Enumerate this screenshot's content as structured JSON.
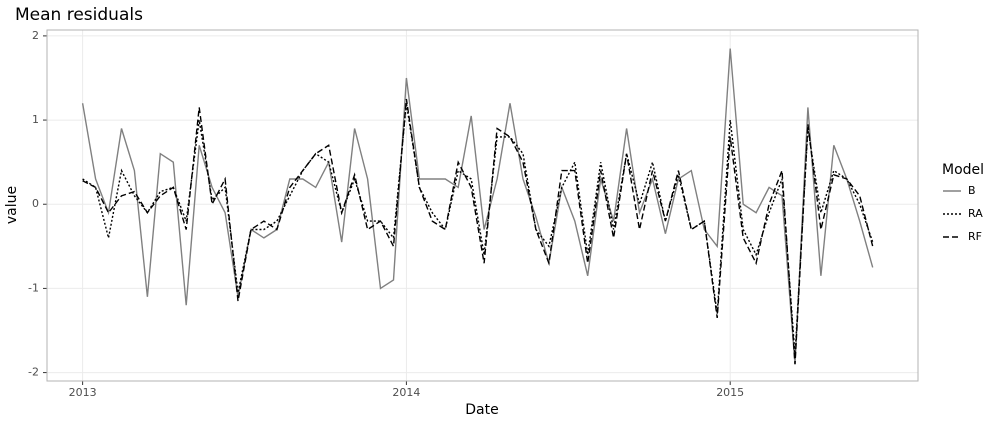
{
  "chart_data": {
    "type": "line",
    "title": "Mean residuals",
    "x_label": "Date",
    "y_label": "value",
    "x": [
      2013.0,
      2013.04,
      2013.08,
      2013.12,
      2013.16,
      2013.2,
      2013.24,
      2013.28,
      2013.32,
      2013.36,
      2013.4,
      2013.44,
      2013.48,
      2013.52,
      2013.56,
      2013.6,
      2013.64,
      2013.68,
      2013.72,
      2013.76,
      2013.8,
      2013.84,
      2013.88,
      2013.92,
      2013.96,
      2014.0,
      2014.04,
      2014.08,
      2014.12,
      2014.16,
      2014.2,
      2014.24,
      2014.28,
      2014.32,
      2014.36,
      2014.4,
      2014.44,
      2014.48,
      2014.52,
      2014.56,
      2014.6,
      2014.64,
      2014.68,
      2014.72,
      2014.76,
      2014.8,
      2014.84,
      2014.88,
      2014.92,
      2014.96,
      2015.0,
      2015.04,
      2015.08,
      2015.12,
      2015.16,
      2015.2,
      2015.24,
      2015.28,
      2015.32,
      2015.36,
      2015.4,
      2015.44
    ],
    "series": [
      {
        "name": "B",
        "color": "#808080",
        "linestyle": "solid",
        "values": [
          1.2,
          0.3,
          -0.1,
          0.9,
          0.4,
          -1.1,
          0.6,
          0.5,
          -1.2,
          0.7,
          0.2,
          -0.1,
          -1.1,
          -0.3,
          -0.4,
          -0.3,
          0.3,
          0.3,
          0.2,
          0.5,
          -0.45,
          0.9,
          0.3,
          -1.0,
          -0.9,
          1.5,
          0.3,
          0.3,
          0.3,
          0.2,
          1.05,
          -0.3,
          0.3,
          1.2,
          0.3,
          -0.15,
          -0.7,
          0.2,
          -0.2,
          -0.85,
          0.3,
          -0.2,
          0.9,
          -0.1,
          0.3,
          -0.35,
          0.3,
          0.4,
          -0.3,
          -0.5,
          1.85,
          0.0,
          -0.1,
          0.2,
          0.1,
          -1.9,
          1.15,
          -0.85,
          0.7,
          0.3,
          -0.2,
          -0.75
        ]
      },
      {
        "name": "RA",
        "color": "#000000",
        "linestyle": "dotted",
        "values": [
          0.3,
          0.2,
          -0.4,
          0.4,
          0.1,
          -0.1,
          0.15,
          0.2,
          -0.2,
          1.0,
          0.05,
          0.2,
          -1.05,
          -0.3,
          -0.3,
          -0.2,
          0.1,
          0.4,
          0.6,
          0.5,
          -0.1,
          0.3,
          -0.2,
          -0.2,
          -0.4,
          1.2,
          0.2,
          -0.1,
          -0.3,
          0.4,
          0.3,
          -0.6,
          0.8,
          0.8,
          0.6,
          -0.3,
          -0.5,
          0.2,
          0.5,
          -0.6,
          0.5,
          -0.3,
          0.6,
          0.0,
          0.5,
          -0.2,
          0.35,
          -0.3,
          -0.2,
          -1.3,
          1.0,
          -0.3,
          -0.6,
          -0.1,
          0.3,
          -1.8,
          0.9,
          -0.1,
          0.4,
          0.3,
          0.0,
          -0.45
        ]
      },
      {
        "name": "RF",
        "color": "#000000",
        "linestyle": "dashed",
        "values": [
          0.28,
          0.2,
          -0.1,
          0.1,
          0.15,
          -0.1,
          0.1,
          0.2,
          -0.3,
          1.15,
          0.0,
          0.3,
          -1.15,
          -0.3,
          -0.2,
          -0.3,
          0.2,
          0.4,
          0.6,
          0.7,
          -0.1,
          0.35,
          -0.3,
          -0.2,
          -0.5,
          1.25,
          0.2,
          -0.2,
          -0.3,
          0.5,
          0.2,
          -0.7,
          0.9,
          0.8,
          0.5,
          -0.3,
          -0.7,
          0.4,
          0.4,
          -0.7,
          0.4,
          -0.4,
          0.6,
          -0.3,
          0.4,
          -0.2,
          0.4,
          -0.3,
          -0.2,
          -1.35,
          0.8,
          -0.4,
          -0.7,
          0.0,
          0.4,
          -1.9,
          0.95,
          -0.3,
          0.35,
          0.3,
          0.1,
          -0.5
        ]
      }
    ],
    "xlim": [
      2012.89,
      2015.58
    ],
    "xticks": [
      2013,
      2014,
      2015
    ],
    "ylim": [
      -2.1,
      2.07
    ],
    "yticks": [
      -2,
      -1,
      0,
      1,
      2
    ],
    "grid": true,
    "legend_title": "Model",
    "legend_position": "right"
  }
}
